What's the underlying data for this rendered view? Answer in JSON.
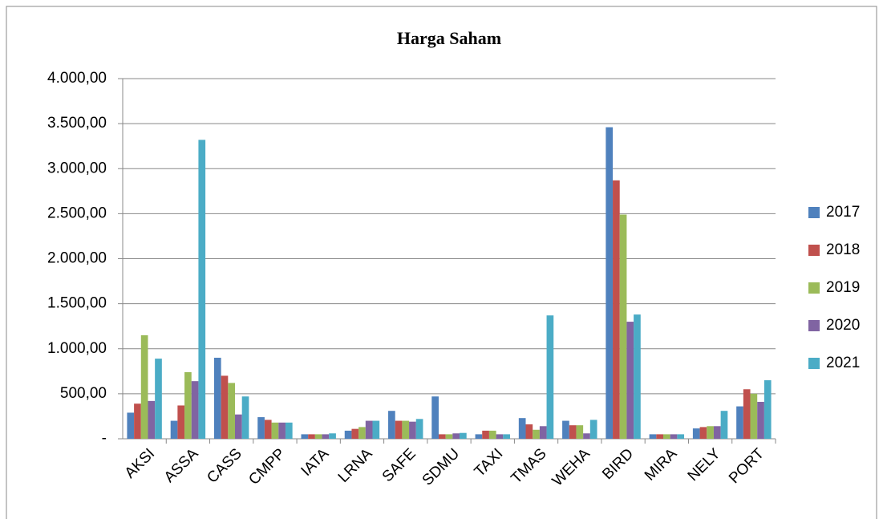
{
  "chart_data": {
    "type": "bar",
    "title": "Harga Saham",
    "categories": [
      "AKSI",
      "ASSA",
      "CASS",
      "CMPP",
      "IATA",
      "LRNA",
      "SAFE",
      "SDMU",
      "TAXI",
      "TMAS",
      "WEHA",
      "BIRD",
      "MIRA",
      "NELY",
      "PORT"
    ],
    "series": [
      {
        "name": "2017",
        "color": "#4f81bd",
        "values": [
          290,
          200,
          900,
          240,
          50,
          90,
          310,
          470,
          50,
          230,
          200,
          3460,
          50,
          115,
          360
        ]
      },
      {
        "name": "2018",
        "color": "#c0504d",
        "values": [
          390,
          370,
          700,
          210,
          50,
          110,
          200,
          50,
          90,
          160,
          150,
          2870,
          50,
          130,
          550
        ]
      },
      {
        "name": "2019",
        "color": "#9bbb59",
        "values": [
          1150,
          740,
          620,
          180,
          50,
          130,
          200,
          50,
          90,
          100,
          150,
          2490,
          50,
          140,
          500
        ]
      },
      {
        "name": "2020",
        "color": "#8064a2",
        "values": [
          420,
          640,
          270,
          180,
          50,
          200,
          190,
          60,
          50,
          140,
          60,
          1300,
          50,
          140,
          410
        ]
      },
      {
        "name": "2021",
        "color": "#4bacc6",
        "values": [
          890,
          3320,
          470,
          180,
          60,
          200,
          220,
          65,
          50,
          1370,
          210,
          1380,
          50,
          310,
          650
        ]
      }
    ],
    "ylim": [
      0,
      4000
    ],
    "yticks": [
      {
        "value": 0,
        "label": "-"
      },
      {
        "value": 500,
        "label": "500,00"
      },
      {
        "value": 1000,
        "label": "1.000,00"
      },
      {
        "value": 1500,
        "label": "1.500,00"
      },
      {
        "value": 2000,
        "label": "2.000,00"
      },
      {
        "value": 2500,
        "label": "2.500,00"
      },
      {
        "value": 3000,
        "label": "3.000,00"
      },
      {
        "value": 3500,
        "label": "3.500,00"
      },
      {
        "value": 4000,
        "label": "4.000,00"
      }
    ],
    "grid": true,
    "legend": "right"
  }
}
